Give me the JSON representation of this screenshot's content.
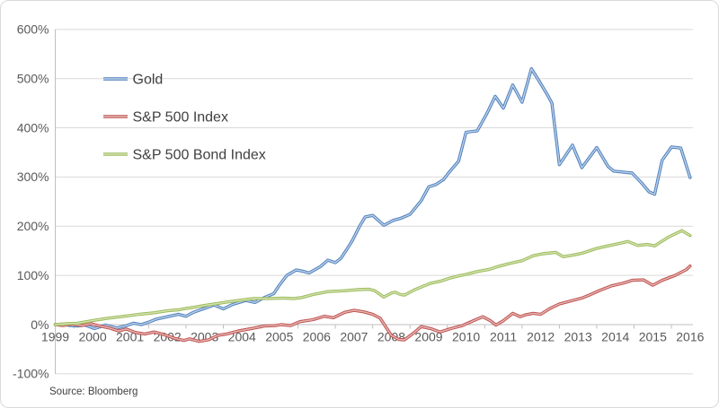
{
  "chart_data": {
    "type": "line",
    "title": "",
    "source_note": "Source: Bloomberg",
    "x_axis": {
      "tick_labels": [
        "1999",
        "2000",
        "2001",
        "2002",
        "2003",
        "2004",
        "2005",
        "2006",
        "2007",
        "2008",
        "2009",
        "2010",
        "2011",
        "2012",
        "2013",
        "2014",
        "2015",
        "2016"
      ],
      "start_year": 1999,
      "end_year": 2016
    },
    "y_axis": {
      "tick_labels": [
        "600%",
        "500%",
        "400%",
        "300%",
        "200%",
        "100%",
        "0%",
        "-100%"
      ],
      "tick_values": [
        600,
        500,
        400,
        300,
        200,
        100,
        0,
        -100
      ],
      "min": -100,
      "max": 600,
      "unit": "%"
    },
    "grid": true,
    "legend_position": "inside-top-left",
    "series": [
      {
        "name": "Gold",
        "color": "#4F81BD",
        "highlight": "#BCCFE8",
        "points": [
          [
            1999.0,
            0
          ],
          [
            1999.2,
            1
          ],
          [
            1999.4,
            -2
          ],
          [
            1999.6,
            -3
          ],
          [
            1999.8,
            -1
          ],
          [
            2000.05,
            -8
          ],
          [
            2000.35,
            -1
          ],
          [
            2000.65,
            -7
          ],
          [
            2000.9,
            -2
          ],
          [
            2001.1,
            3
          ],
          [
            2001.3,
            0
          ],
          [
            2001.5,
            5
          ],
          [
            2001.7,
            11
          ],
          [
            2002.0,
            16
          ],
          [
            2002.3,
            21
          ],
          [
            2002.5,
            17
          ],
          [
            2002.7,
            25
          ],
          [
            2003.0,
            33
          ],
          [
            2003.25,
            40
          ],
          [
            2003.5,
            32
          ],
          [
            2003.75,
            41
          ],
          [
            2004.1,
            49
          ],
          [
            2004.35,
            45
          ],
          [
            2004.6,
            55
          ],
          [
            2004.85,
            63
          ],
          [
            2005.0,
            80
          ],
          [
            2005.2,
            100
          ],
          [
            2005.45,
            111
          ],
          [
            2005.6,
            109
          ],
          [
            2005.8,
            105
          ],
          [
            2006.1,
            118
          ],
          [
            2006.3,
            131
          ],
          [
            2006.5,
            126
          ],
          [
            2006.65,
            135
          ],
          [
            2006.8,
            152
          ],
          [
            2006.95,
            170
          ],
          [
            2007.15,
            200
          ],
          [
            2007.3,
            219
          ],
          [
            2007.5,
            222
          ],
          [
            2007.8,
            202
          ],
          [
            2008.05,
            212
          ],
          [
            2008.25,
            216
          ],
          [
            2008.5,
            224
          ],
          [
            2008.8,
            252
          ],
          [
            2009.0,
            280
          ],
          [
            2009.2,
            285
          ],
          [
            2009.4,
            295
          ],
          [
            2009.55,
            310
          ],
          [
            2009.8,
            332
          ],
          [
            2010.0,
            391
          ],
          [
            2010.3,
            394
          ],
          [
            2010.55,
            428
          ],
          [
            2010.78,
            464
          ],
          [
            2011.0,
            440
          ],
          [
            2011.25,
            487
          ],
          [
            2011.5,
            452
          ],
          [
            2011.75,
            520
          ],
          [
            2012.0,
            490
          ],
          [
            2012.2,
            464
          ],
          [
            2012.3,
            450
          ],
          [
            2012.5,
            325
          ],
          [
            2012.85,
            365
          ],
          [
            2013.1,
            319
          ],
          [
            2013.5,
            360
          ],
          [
            2013.8,
            322
          ],
          [
            2013.95,
            312
          ],
          [
            2014.2,
            310
          ],
          [
            2014.45,
            308
          ],
          [
            2014.7,
            288
          ],
          [
            2014.9,
            270
          ],
          [
            2015.05,
            265
          ],
          [
            2015.25,
            334
          ],
          [
            2015.5,
            361
          ],
          [
            2015.75,
            359
          ],
          [
            2016.0,
            299
          ]
        ]
      },
      {
        "name": "S&P 500 Index",
        "color": "#C0504D",
        "highlight": "#E4B8B6",
        "points": [
          [
            1999.0,
            0
          ],
          [
            1999.2,
            -2
          ],
          [
            1999.45,
            1
          ],
          [
            1999.7,
            -2
          ],
          [
            1999.95,
            2
          ],
          [
            2000.15,
            -2
          ],
          [
            2000.45,
            -7
          ],
          [
            2000.7,
            -13
          ],
          [
            2000.9,
            -9
          ],
          [
            2001.15,
            -16
          ],
          [
            2001.4,
            -19
          ],
          [
            2001.65,
            -15
          ],
          [
            2001.9,
            -20
          ],
          [
            2002.2,
            -28
          ],
          [
            2002.45,
            -32
          ],
          [
            2002.6,
            -29
          ],
          [
            2002.85,
            -34
          ],
          [
            2003.1,
            -31
          ],
          [
            2003.35,
            -22
          ],
          [
            2003.6,
            -19
          ],
          [
            2003.9,
            -13
          ],
          [
            2004.25,
            -8
          ],
          [
            2004.6,
            -3
          ],
          [
            2004.9,
            -2
          ],
          [
            2005.05,
            0
          ],
          [
            2005.3,
            -2
          ],
          [
            2005.55,
            6
          ],
          [
            2005.9,
            10
          ],
          [
            2006.2,
            17
          ],
          [
            2006.45,
            14
          ],
          [
            2006.75,
            25
          ],
          [
            2007.0,
            29
          ],
          [
            2007.25,
            26
          ],
          [
            2007.5,
            21
          ],
          [
            2007.7,
            13
          ],
          [
            2008.0,
            -22
          ],
          [
            2008.2,
            -30
          ],
          [
            2008.35,
            -31
          ],
          [
            2008.6,
            -17
          ],
          [
            2008.8,
            -4
          ],
          [
            2009.05,
            -8
          ],
          [
            2009.3,
            -15
          ],
          [
            2009.6,
            -8
          ],
          [
            2009.9,
            -2
          ],
          [
            2010.2,
            8
          ],
          [
            2010.45,
            16
          ],
          [
            2010.65,
            8
          ],
          [
            2010.8,
            -1
          ],
          [
            2011.0,
            8
          ],
          [
            2011.25,
            23
          ],
          [
            2011.45,
            16
          ],
          [
            2011.6,
            20
          ],
          [
            2011.8,
            23
          ],
          [
            2012.0,
            21
          ],
          [
            2012.25,
            33
          ],
          [
            2012.5,
            42
          ],
          [
            2012.85,
            49
          ],
          [
            2013.1,
            54
          ],
          [
            2013.3,
            60
          ],
          [
            2013.6,
            70
          ],
          [
            2013.9,
            79
          ],
          [
            2014.2,
            84
          ],
          [
            2014.45,
            90
          ],
          [
            2014.75,
            91
          ],
          [
            2015.0,
            80
          ],
          [
            2015.25,
            90
          ],
          [
            2015.6,
            100
          ],
          [
            2015.9,
            112
          ],
          [
            2016.0,
            119
          ]
        ]
      },
      {
        "name": "S&P 500 Bond Index",
        "color": "#9BBB59",
        "highlight": "#D5E2B3",
        "points": [
          [
            1999.0,
            0
          ],
          [
            1999.3,
            2
          ],
          [
            1999.6,
            3
          ],
          [
            2000.0,
            8
          ],
          [
            2000.4,
            13
          ],
          [
            2000.85,
            17
          ],
          [
            2001.25,
            21
          ],
          [
            2001.65,
            24
          ],
          [
            2002.0,
            28
          ],
          [
            2002.3,
            30
          ],
          [
            2002.5,
            33
          ],
          [
            2002.7,
            35
          ],
          [
            2003.0,
            39
          ],
          [
            2003.35,
            43
          ],
          [
            2003.6,
            46
          ],
          [
            2004.0,
            50
          ],
          [
            2004.3,
            53
          ],
          [
            2004.7,
            53
          ],
          [
            2005.1,
            54
          ],
          [
            2005.4,
            53
          ],
          [
            2005.6,
            55
          ],
          [
            2005.9,
            61
          ],
          [
            2006.3,
            67
          ],
          [
            2006.8,
            69
          ],
          [
            2007.1,
            71
          ],
          [
            2007.4,
            72
          ],
          [
            2007.55,
            69
          ],
          [
            2007.8,
            56
          ],
          [
            2008.0,
            64
          ],
          [
            2008.1,
            66
          ],
          [
            2008.25,
            61
          ],
          [
            2008.35,
            60
          ],
          [
            2008.6,
            70
          ],
          [
            2008.85,
            78
          ],
          [
            2009.05,
            84
          ],
          [
            2009.3,
            88
          ],
          [
            2009.55,
            94
          ],
          [
            2009.8,
            99
          ],
          [
            2010.0,
            102
          ],
          [
            2010.3,
            108
          ],
          [
            2010.6,
            112
          ],
          [
            2010.85,
            118
          ],
          [
            2011.15,
            124
          ],
          [
            2011.5,
            130
          ],
          [
            2011.8,
            140
          ],
          [
            2012.05,
            144
          ],
          [
            2012.4,
            147
          ],
          [
            2012.6,
            138
          ],
          [
            2012.85,
            141
          ],
          [
            2013.1,
            145
          ],
          [
            2013.5,
            155
          ],
          [
            2013.8,
            160
          ],
          [
            2014.05,
            164
          ],
          [
            2014.33,
            169
          ],
          [
            2014.6,
            161
          ],
          [
            2014.85,
            163
          ],
          [
            2015.05,
            160
          ],
          [
            2015.4,
            177
          ],
          [
            2015.78,
            191
          ],
          [
            2016.0,
            181
          ]
        ]
      }
    ]
  },
  "colors": {
    "background": "#FFFFFF",
    "border": "#D9D9D9",
    "grid": "#D9D9D9",
    "axis": "#BFBFBF",
    "tick_text": "#595959",
    "legend_text": "#404040",
    "source_text": "#404040"
  }
}
